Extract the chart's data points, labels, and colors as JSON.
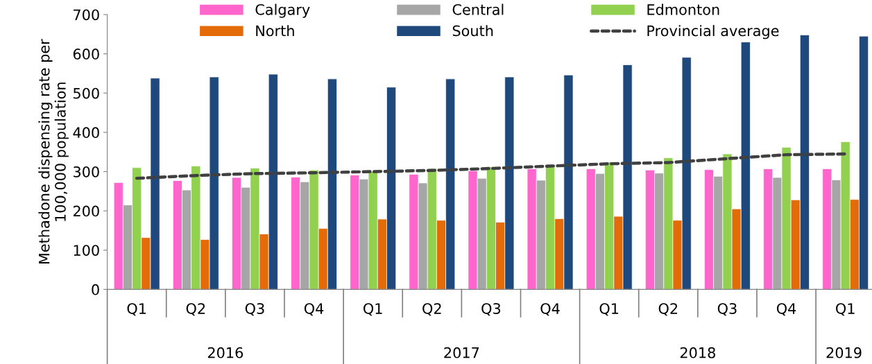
{
  "chart_data": {
    "type": "bar",
    "ylabel": "Methadone dispensing rate per\n100,000 population",
    "categories": [
      "Q1",
      "Q2",
      "Q3",
      "Q4",
      "Q1",
      "Q2",
      "Q3",
      "Q4",
      "Q1",
      "Q2",
      "Q3",
      "Q4",
      "Q1"
    ],
    "series": [
      {
        "name": "Calgary",
        "color": "#ff66cc",
        "values": [
          272,
          277,
          285,
          286,
          291,
          293,
          302,
          307,
          307,
          304,
          305,
          307,
          307
        ]
      },
      {
        "name": "Central",
        "color": "#a6a6a6",
        "values": [
          215,
          253,
          260,
          274,
          281,
          271,
          283,
          278,
          295,
          296,
          288,
          285,
          279
        ]
      },
      {
        "name": "Edmonton",
        "color": "#92d050",
        "values": [
          310,
          314,
          309,
          304,
          300,
          308,
          312,
          318,
          324,
          335,
          345,
          362,
          376
        ]
      },
      {
        "name": "North",
        "color": "#e36c09",
        "values": [
          132,
          127,
          141,
          155,
          179,
          176,
          171,
          180,
          186,
          176,
          205,
          228,
          229
        ]
      },
      {
        "name": "South",
        "color": "#1f497d",
        "values": [
          538,
          541,
          548,
          536,
          515,
          536,
          541,
          546,
          572,
          591,
          630,
          648,
          645
        ]
      },
      {
        "name": "Provincial average",
        "color": "#404040",
        "type": "line",
        "line_style": "dashed",
        "values": [
          283,
          290,
          295,
          297,
          300,
          303,
          308,
          314,
          320,
          323,
          333,
          343,
          345
        ]
      }
    ],
    "annotations": [
      "2016",
      "2017",
      "2018",
      "2019"
    ],
    "ylim": [
      0,
      700
    ],
    "yticks": [
      0,
      100,
      200,
      300,
      400,
      500,
      600,
      700
    ],
    "grid": false,
    "legend": "top"
  }
}
